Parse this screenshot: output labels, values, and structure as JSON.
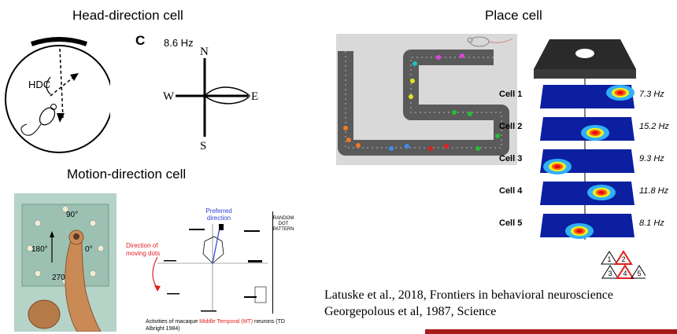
{
  "hd": {
    "title": "Head-direction cell",
    "label": "HDC",
    "panel_letter": "C",
    "rate": "8.6 Hz",
    "compass": {
      "n": "N",
      "s": "S",
      "e": "E",
      "w": "W"
    }
  },
  "motion": {
    "title": "Motion-direction cell",
    "angles": {
      "a90": "90°",
      "a180": "180°",
      "a0": "0°",
      "a270": "270°"
    },
    "preferred": "Preferred direction",
    "preferred_l1": "Preferred",
    "preferred_l2": "direction",
    "moving_l1": "Direction of",
    "moving_l2": "moving dots",
    "random": {
      "l1": "RANDOM",
      "l2": "DOT",
      "l3": "PATTERN"
    },
    "caption": {
      "pre": "Activities of macaque ",
      "highlight": "Middle Temporal (MT)",
      "post": " neurons (TD",
      "line2": "Albright 1984)"
    }
  },
  "place": {
    "title": "Place cell",
    "cells": [
      {
        "label": "Cell 1",
        "rate": "7.3 Hz"
      },
      {
        "label": "Cell 2",
        "rate": "15.2 Hz"
      },
      {
        "label": "Cell 3",
        "rate": "9.3 Hz"
      },
      {
        "label": "Cell 4",
        "rate": "11.8 Hz"
      },
      {
        "label": "Cell 5",
        "rate": "8.1 Hz"
      }
    ],
    "triangles": [
      "1",
      "2",
      "3",
      "4",
      "5"
    ]
  },
  "refs": [
    "Latuske et al., 2018, Frontiers in behavioral neuroscience",
    "Georgepolous et al, 1987, Science"
  ],
  "colors": {
    "accent_bar": "#a51c1c",
    "heat_bg": "#0b1fa0",
    "highlight_red": "#e0201d",
    "preferred_blue": "#2b3fd4"
  }
}
